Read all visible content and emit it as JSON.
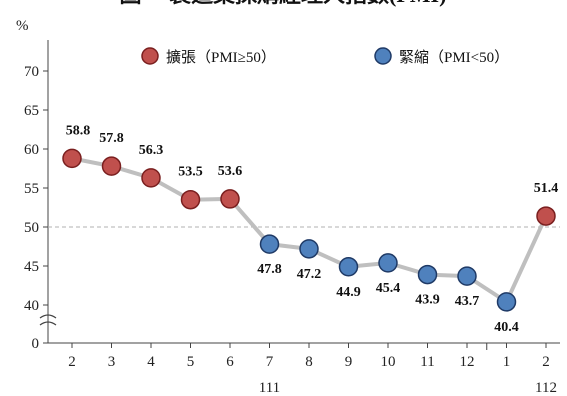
{
  "chart_data": {
    "type": "line",
    "title": "圖一 製造業採購經理人指數(PMI)",
    "ylabel": "%",
    "y_ticks": [
      0,
      40,
      45,
      50,
      55,
      60,
      65,
      70
    ],
    "y_axis_break": true,
    "reference_line": 50,
    "categories": [
      "2",
      "3",
      "4",
      "5",
      "6",
      "7",
      "8",
      "9",
      "10",
      "11",
      "12",
      "1",
      "2"
    ],
    "year_labels": [
      {
        "text": "111",
        "category_index": 5
      },
      {
        "text": "112",
        "category_index": 12
      }
    ],
    "values": [
      58.8,
      57.8,
      56.3,
      53.5,
      53.6,
      47.8,
      47.2,
      44.9,
      45.4,
      43.9,
      43.7,
      40.4,
      51.4
    ],
    "value_labels": [
      "58.8",
      "57.8",
      "56.3",
      "53.5",
      "53.6",
      "47.8",
      "47.2",
      "44.9",
      "45.4",
      "43.9",
      "43.7",
      "40.4",
      "51.4"
    ],
    "legend": {
      "placement": "top",
      "entries": [
        {
          "label": "擴張（PMI≥50）",
          "color": "#c0504d",
          "edge": "#7a1f1f"
        },
        {
          "label": "緊縮（PMI<50）",
          "color": "#4f81bd",
          "edge": "#1f3a66"
        }
      ]
    },
    "line_color": "#bfbfbf",
    "reference_line_color": "#b0b0b0"
  }
}
